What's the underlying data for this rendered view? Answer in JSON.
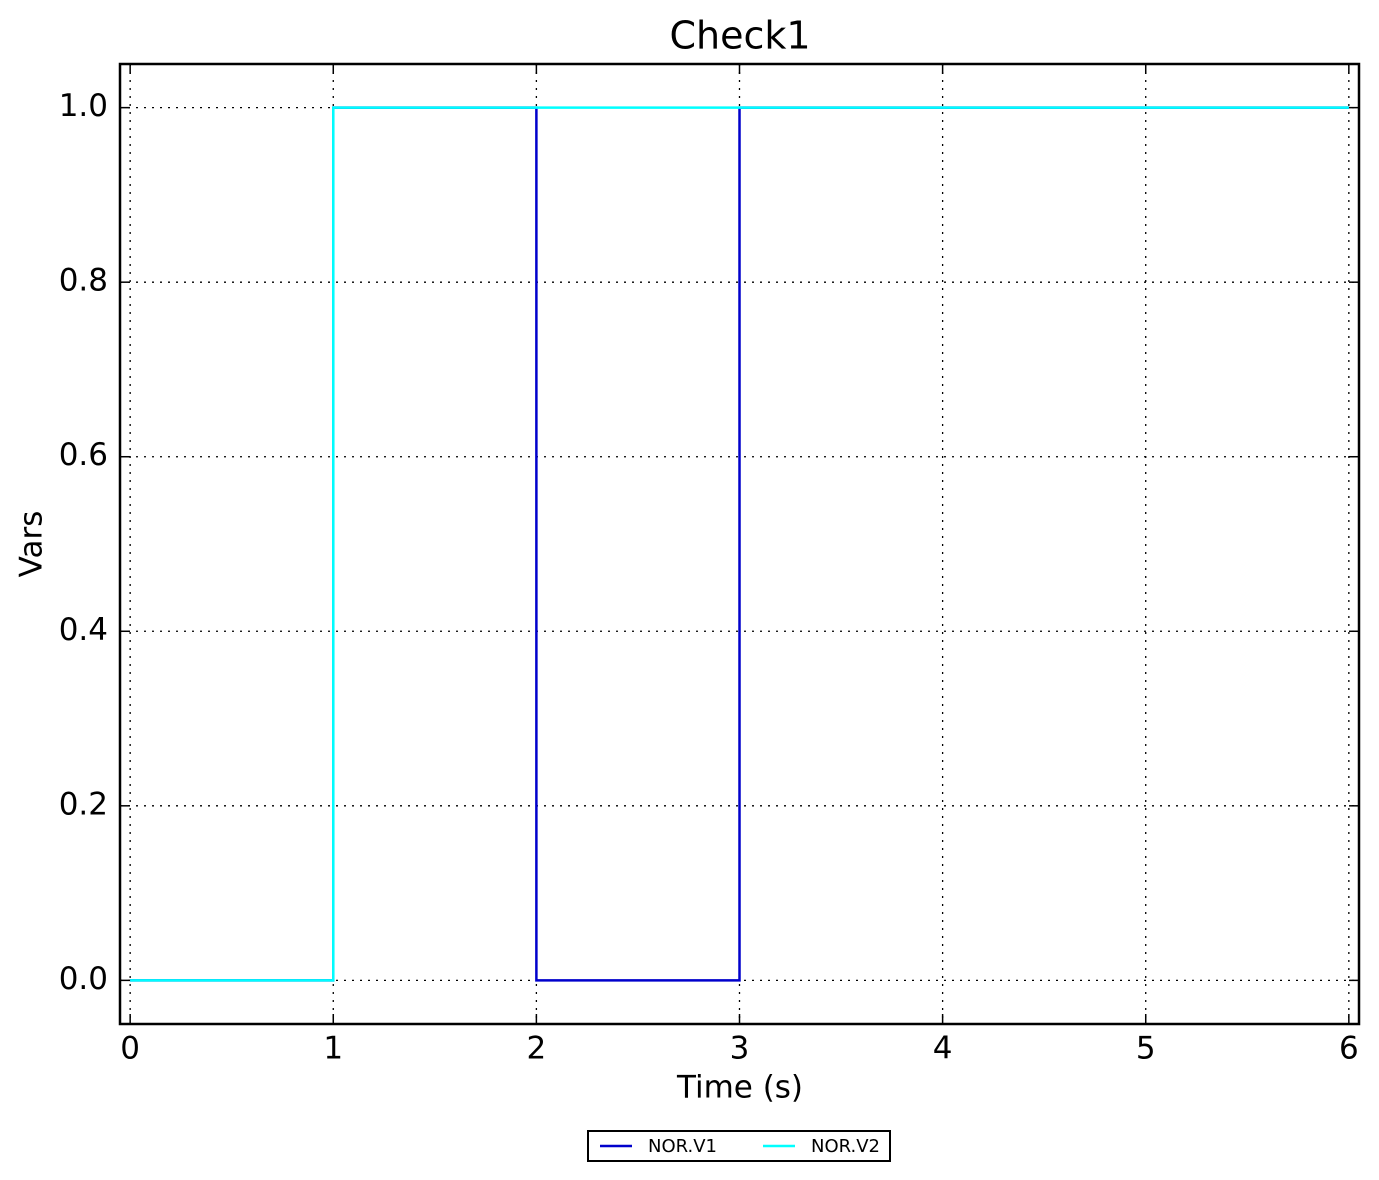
{
  "chart_data": {
    "type": "line",
    "title": "Check1",
    "x_label": "Time (s)",
    "y_label": "Vars",
    "series": [
      {
        "name": "NOR.V1",
        "color": "#0000cc",
        "x": [
          0,
          1,
          1,
          2,
          2,
          3,
          3,
          6
        ],
        "values": [
          0,
          0,
          1,
          1,
          0,
          0,
          1,
          1
        ]
      },
      {
        "name": "NOR.V2",
        "color": "#00ffff",
        "x": [
          0,
          1,
          1,
          6
        ],
        "values": [
          0,
          0,
          1,
          1
        ]
      }
    ],
    "xlim": [
      -0.05,
      6.05
    ],
    "xticks": [
      0,
      1,
      2,
      3,
      4,
      5,
      6
    ],
    "ylim": [
      -0.05,
      1.05
    ],
    "yticks": [
      {
        "value": 0,
        "label": "0.0"
      },
      0.2,
      0.4,
      0.6,
      0.8,
      {
        "value": 1,
        "label": "1.0"
      }
    ],
    "grid": true,
    "legend": "bottom"
  }
}
